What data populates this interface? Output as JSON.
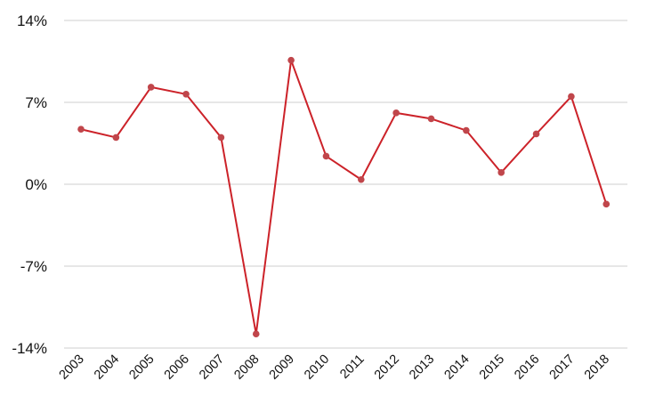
{
  "chart_data": {
    "type": "line",
    "title": "",
    "xlabel": "",
    "ylabel": "",
    "ylim": [
      -14,
      14
    ],
    "y_ticks": [
      14,
      7,
      0,
      -7,
      -14
    ],
    "y_tick_labels": [
      "14%",
      "7%",
      "0%",
      "-7%",
      "-14%"
    ],
    "grid": "horizontal",
    "categories": [
      "2003",
      "2004",
      "2005",
      "2006",
      "2007",
      "2008",
      "2009",
      "2010",
      "2011",
      "2012",
      "2013",
      "2014",
      "2015",
      "2016",
      "2017",
      "2018"
    ],
    "series": [
      {
        "values": [
          4.7,
          4.0,
          8.3,
          7.7,
          4.0,
          -12.8,
          10.6,
          2.4,
          0.4,
          6.1,
          5.6,
          4.6,
          1.0,
          4.3,
          7.5,
          -1.7
        ],
        "color": "#cc2229",
        "marker_color": "#c0464b"
      }
    ]
  }
}
